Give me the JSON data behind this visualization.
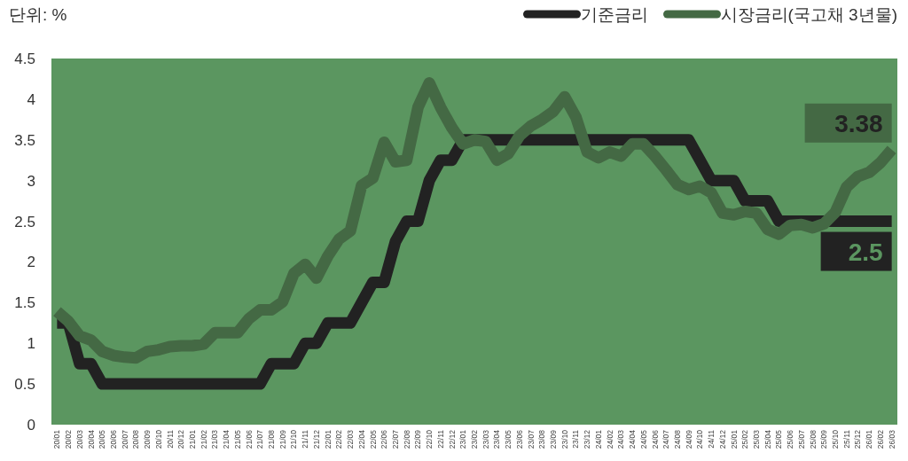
{
  "chart_data": {
    "type": "line",
    "annotations": [
      "단위: %"
    ],
    "legend": "top right",
    "grid": false,
    "marker": "none",
    "line_style": "solid",
    "categories": [
      "20/01",
      "20/02",
      "20/03",
      "20/04",
      "20/05",
      "20/06",
      "20/07",
      "20/08",
      "20/09",
      "20/10",
      "20/11",
      "20/12",
      "21/01",
      "21/02",
      "21/03",
      "21/04",
      "21/05",
      "21/06",
      "21/07",
      "21/08",
      "21/09",
      "21/10",
      "21/11",
      "21/12",
      "22/01",
      "22/02",
      "22/03",
      "22/04",
      "22/05",
      "22/06",
      "22/07",
      "22/08",
      "22/09",
      "22/10",
      "22/11",
      "22/12",
      "23/01",
      "23/02",
      "23/03",
      "23/04",
      "23/05",
      "23/06",
      "23/07",
      "23/08",
      "23/09",
      "23/10",
      "23/11",
      "23/12",
      "24/01",
      "24/02",
      "24/03",
      "24/04",
      "24/05",
      "24/06",
      "24/07",
      "24/08",
      "24/09",
      "24/10",
      "24/11",
      "24/12",
      "25/01",
      "25/02",
      "25/03",
      "25/04",
      "25/05",
      "25/06",
      "25/07",
      "25/08",
      "25/09",
      "25/10",
      "25/11",
      "25/12",
      "26/01",
      "26/02",
      "26/03"
    ],
    "ylim": [
      0,
      4.5
    ],
    "yticks": [
      0,
      0.5,
      1,
      1.5,
      2,
      2.5,
      3,
      3.5,
      4,
      4.5
    ],
    "series": [
      {
        "name": "기준금리",
        "color": "#222222",
        "values": [
          1.25,
          1.25,
          0.75,
          0.75,
          0.5,
          0.5,
          0.5,
          0.5,
          0.5,
          0.5,
          0.5,
          0.5,
          0.5,
          0.5,
          0.5,
          0.5,
          0.5,
          0.5,
          0.5,
          0.75,
          0.75,
          0.75,
          1.0,
          1.0,
          1.25,
          1.25,
          1.25,
          1.5,
          1.75,
          1.75,
          2.25,
          2.5,
          2.5,
          3.0,
          3.25,
          3.25,
          3.5,
          3.5,
          3.5,
          3.5,
          3.5,
          3.5,
          3.5,
          3.5,
          3.5,
          3.5,
          3.5,
          3.5,
          3.5,
          3.5,
          3.5,
          3.5,
          3.5,
          3.5,
          3.5,
          3.5,
          3.5,
          3.25,
          3.0,
          3.0,
          3.0,
          2.75,
          2.75,
          2.75,
          2.5,
          2.5,
          2.5,
          2.5,
          2.5,
          2.5,
          2.5,
          2.5,
          2.5,
          2.5,
          2.5
        ],
        "value_labels": [
          null,
          null,
          null,
          null,
          null,
          null,
          null,
          null,
          null,
          null,
          null,
          null,
          null,
          null,
          null,
          null,
          null,
          null,
          null,
          null,
          null,
          null,
          null,
          null,
          null,
          null,
          null,
          null,
          null,
          null,
          null,
          null,
          null,
          null,
          null,
          null,
          null,
          null,
          null,
          null,
          null,
          null,
          null,
          null,
          null,
          null,
          null,
          null,
          null,
          null,
          null,
          null,
          null,
          null,
          null,
          null,
          null,
          null,
          null,
          null,
          null,
          null,
          null,
          null,
          null,
          null,
          null,
          null,
          null,
          null,
          null,
          null,
          null,
          null,
          "2.5"
        ]
      },
      {
        "name": "시장금리(국고채 3년물)",
        "color": "#446944",
        "values": [
          1.39,
          1.27,
          1.09,
          1.04,
          0.9,
          0.85,
          0.83,
          0.82,
          0.9,
          0.92,
          0.96,
          0.97,
          0.97,
          0.99,
          1.13,
          1.13,
          1.13,
          1.3,
          1.41,
          1.41,
          1.51,
          1.86,
          1.97,
          1.8,
          2.07,
          2.28,
          2.38,
          2.94,
          3.03,
          3.47,
          3.23,
          3.25,
          3.9,
          4.2,
          3.9,
          3.65,
          3.45,
          3.5,
          3.48,
          3.25,
          3.33,
          3.55,
          3.67,
          3.75,
          3.85,
          4.03,
          3.78,
          3.35,
          3.28,
          3.35,
          3.3,
          3.45,
          3.45,
          3.3,
          3.13,
          2.95,
          2.89,
          2.93,
          2.85,
          2.6,
          2.58,
          2.62,
          2.6,
          2.4,
          2.34,
          2.45,
          2.46,
          2.42,
          2.47,
          2.61,
          2.92,
          3.05,
          3.1,
          3.22,
          3.38
        ],
        "value_labels": [
          null,
          null,
          null,
          null,
          null,
          null,
          null,
          null,
          null,
          null,
          null,
          null,
          null,
          null,
          null,
          null,
          null,
          null,
          null,
          null,
          null,
          null,
          null,
          null,
          null,
          null,
          null,
          null,
          null,
          null,
          null,
          null,
          null,
          null,
          null,
          null,
          null,
          null,
          null,
          null,
          null,
          null,
          null,
          null,
          null,
          null,
          null,
          null,
          null,
          null,
          null,
          null,
          null,
          null,
          null,
          null,
          null,
          null,
          null,
          null,
          null,
          null,
          null,
          null,
          null,
          null,
          null,
          null,
          null,
          null,
          null,
          null,
          null,
          null,
          "3.38"
        ]
      }
    ]
  }
}
